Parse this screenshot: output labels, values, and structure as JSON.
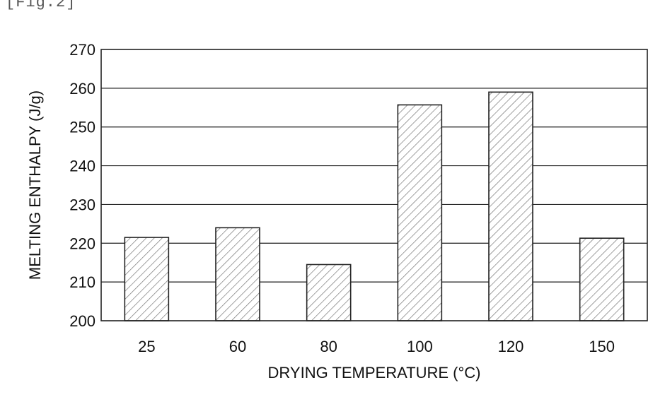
{
  "figure_label": "[Fig.2]",
  "chart_data": {
    "type": "bar",
    "categories": [
      "25",
      "60",
      "80",
      "100",
      "120",
      "150"
    ],
    "values": [
      221.5,
      224,
      214.5,
      255.7,
      259,
      221.3
    ],
    "title": "",
    "xlabel": "DRYING TEMPERATURE (°C)",
    "ylabel": "MELTING ENTHALPY (J/g)",
    "ylim": [
      200,
      270
    ],
    "yticks": [
      200,
      210,
      220,
      230,
      240,
      250,
      260,
      270
    ],
    "grid": true,
    "legend": "none",
    "bar_fill": "hatched"
  }
}
